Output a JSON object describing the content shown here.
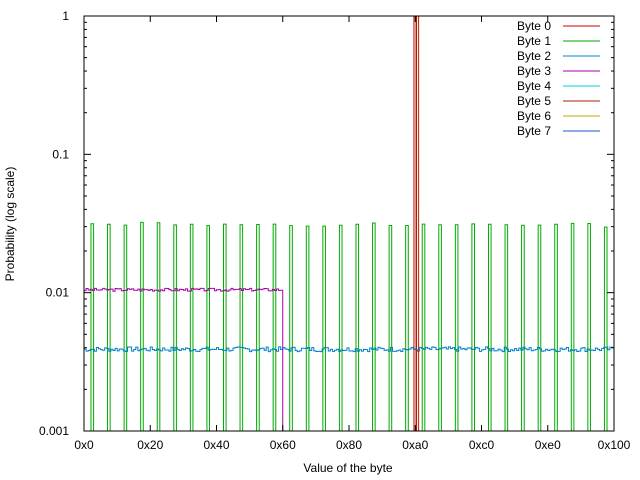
{
  "chart_data": {
    "type": "line",
    "title": "",
    "xlabel": "Value of the byte",
    "ylabel": "Probability (log scale)",
    "xlim": [
      0,
      256
    ],
    "ylim": [
      0.001,
      1
    ],
    "yscale": "log",
    "grid": false,
    "legend_position": "top-right",
    "x_ticks": [
      {
        "value": 0,
        "label": "0x0"
      },
      {
        "value": 32,
        "label": "0x20"
      },
      {
        "value": 64,
        "label": "0x40"
      },
      {
        "value": 96,
        "label": "0x60"
      },
      {
        "value": 128,
        "label": "0x80"
      },
      {
        "value": 160,
        "label": "0xa0"
      },
      {
        "value": 192,
        "label": "0xc0"
      },
      {
        "value": 224,
        "label": "0xe0"
      },
      {
        "value": 256,
        "label": "0x100"
      }
    ],
    "y_ticks": [
      {
        "value": 0.001,
        "label": "0.001"
      },
      {
        "value": 0.01,
        "label": "0.01"
      },
      {
        "value": 0.1,
        "label": "0.1"
      },
      {
        "value": 1,
        "label": "1"
      }
    ],
    "series": [
      {
        "name": "Byte 0",
        "color": "#cc0000",
        "kind": "spikes",
        "points": [
          [
            160,
            1
          ]
        ]
      },
      {
        "name": "Byte 1",
        "color": "#00aa00",
        "kind": "spikes",
        "points": [
          [
            4,
            0.0315
          ],
          [
            12,
            0.0312
          ],
          [
            20,
            0.0308
          ],
          [
            28,
            0.0322
          ],
          [
            36,
            0.032
          ],
          [
            44,
            0.0309
          ],
          [
            52,
            0.0312
          ],
          [
            60,
            0.0305
          ],
          [
            68,
            0.0313
          ],
          [
            76,
            0.031
          ],
          [
            84,
            0.0311
          ],
          [
            92,
            0.0313
          ],
          [
            100,
            0.0305
          ],
          [
            108,
            0.0303
          ],
          [
            116,
            0.0303
          ],
          [
            124,
            0.0307
          ],
          [
            132,
            0.0312
          ],
          [
            140,
            0.0319
          ],
          [
            148,
            0.0306
          ],
          [
            156,
            0.0306
          ],
          [
            164,
            0.0313
          ],
          [
            172,
            0.031
          ],
          [
            180,
            0.031
          ],
          [
            188,
            0.0314
          ],
          [
            196,
            0.0312
          ],
          [
            204,
            0.031
          ],
          [
            212,
            0.0307
          ],
          [
            220,
            0.0308
          ],
          [
            228,
            0.0312
          ],
          [
            236,
            0.0317
          ],
          [
            244,
            0.0316
          ],
          [
            252,
            0.0298
          ]
        ]
      },
      {
        "name": "Byte 2",
        "color": "#0080cc",
        "kind": "step",
        "range": [
          0,
          256
        ],
        "mean": 0.0039,
        "jitter": 0.04,
        "seed": 7
      },
      {
        "name": "Byte 3",
        "color": "#aa00aa",
        "kind": "step",
        "range": [
          0,
          96
        ],
        "mean": 0.0105,
        "jitter": 0.025,
        "seed": 3
      },
      {
        "name": "Byte 4",
        "color": "#00cccc",
        "kind": "none"
      },
      {
        "name": "Byte 5",
        "color": "#aa2200",
        "kind": "spikes",
        "points": [
          [
            161,
            1
          ]
        ]
      },
      {
        "name": "Byte 6",
        "color": "#ccaa00",
        "kind": "none"
      },
      {
        "name": "Byte 7",
        "color": "#2255cc",
        "kind": "none"
      }
    ]
  }
}
